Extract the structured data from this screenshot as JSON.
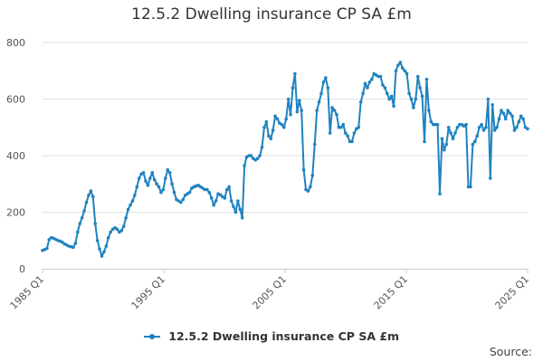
{
  "chart_data": {
    "type": "line",
    "title": "12.5.2 Dwelling insurance CP SA £m",
    "xlabel": "",
    "ylabel": "",
    "ylim": [
      0,
      800
    ],
    "y_ticks": [
      0,
      200,
      400,
      600,
      800
    ],
    "x_ticks": [
      "1985 Q1",
      "1995 Q1",
      "2005 Q1",
      "2015 Q1",
      "2025 Q1"
    ],
    "grid": true,
    "legend": "bottom",
    "source_label": "Source:",
    "series": [
      {
        "name": "12.5.2 Dwelling insurance CP SA £m",
        "color": "#1f82c0",
        "values": [
          65,
          68,
          72,
          103,
          110,
          108,
          104,
          100,
          98,
          94,
          88,
          84,
          80,
          78,
          76,
          90,
          130,
          160,
          180,
          205,
          235,
          260,
          275,
          255,
          160,
          100,
          70,
          45,
          60,
          80,
          110,
          130,
          140,
          145,
          140,
          130,
          135,
          150,
          180,
          210,
          225,
          240,
          260,
          290,
          320,
          335,
          340,
          310,
          295,
          320,
          340,
          315,
          300,
          290,
          270,
          280,
          320,
          350,
          340,
          300,
          270,
          245,
          240,
          235,
          245,
          260,
          265,
          270,
          285,
          290,
          293,
          295,
          290,
          285,
          280,
          280,
          270,
          250,
          225,
          240,
          265,
          262,
          255,
          250,
          280,
          290,
          240,
          220,
          200,
          240,
          210,
          180,
          365,
          395,
          400,
          400,
          390,
          385,
          390,
          400,
          430,
          500,
          520,
          470,
          460,
          490,
          540,
          530,
          515,
          510,
          500,
          530,
          600,
          545,
          640,
          690,
          555,
          595,
          560,
          350,
          280,
          275,
          290,
          330,
          440,
          560,
          590,
          620,
          660,
          675,
          640,
          480,
          570,
          560,
          545,
          500,
          500,
          510,
          480,
          470,
          450,
          450,
          480,
          495,
          500,
          590,
          620,
          655,
          640,
          660,
          670,
          690,
          685,
          680,
          680,
          650,
          640,
          620,
          600,
          610,
          575,
          700,
          720,
          730,
          710,
          700,
          690,
          620,
          600,
          570,
          600,
          680,
          640,
          610,
          450,
          670,
          560,
          520,
          510,
          510,
          510,
          265,
          460,
          420,
          440,
          500,
          480,
          460,
          480,
          500,
          510,
          510,
          505,
          510,
          290,
          290,
          440,
          450,
          470,
          500,
          510,
          490,
          500,
          600,
          320,
          580,
          490,
          500,
          530,
          560,
          550,
          530,
          560,
          550,
          540,
          490,
          500,
          520,
          540,
          530,
          500,
          495
        ]
      }
    ]
  }
}
